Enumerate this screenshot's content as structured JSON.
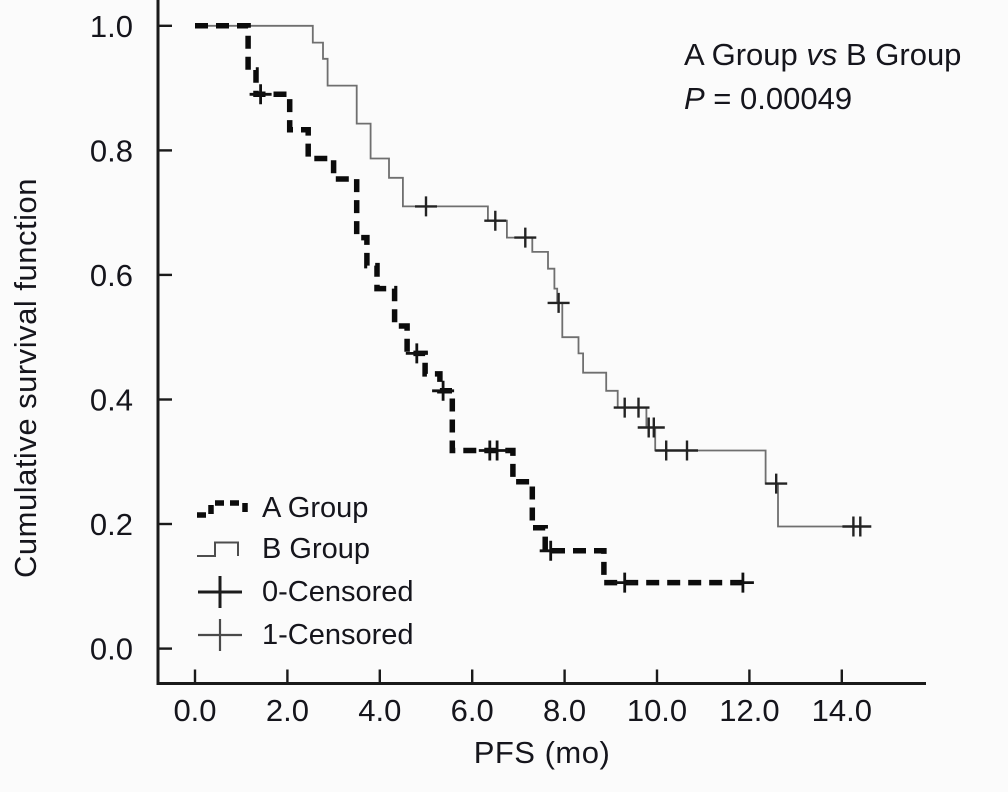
{
  "chart_data": {
    "type": "line",
    "subtype": "kaplan-meier-step-plot",
    "title": "",
    "xlabel": "PFS (mo)",
    "ylabel": "Cumulative survival function",
    "xlim": [
      0,
      15.8
    ],
    "ylim": [
      0,
      1.05
    ],
    "grid": false,
    "legend_position": "lower-left-inside",
    "x_ticks": {
      "values": [
        0,
        2,
        4,
        6,
        8,
        10,
        12,
        14
      ],
      "labels": [
        "0.0",
        "2.0",
        "4.0",
        "6.0",
        "8.0",
        "10.0",
        "12.0",
        "14.0"
      ]
    },
    "y_ticks": {
      "values": [
        0,
        0.2,
        0.4,
        0.6,
        0.8,
        1.0
      ],
      "labels": [
        "0.0",
        "0.2",
        "0.4",
        "0.6",
        "0.8",
        "1.0"
      ]
    },
    "annotation": {
      "a_label": "A Group ",
      "vs_label": "vs",
      "b_label": " B Group",
      "p_symbol": "P",
      "p_rest": " = 0.00049"
    },
    "legend": [
      {
        "label": "A Group",
        "symbol": "thick-dashed-step"
      },
      {
        "label": "B Group",
        "symbol": "thin-step"
      },
      {
        "label": "0-Censored",
        "symbol": "plus-bold"
      },
      {
        "label": "1-Censored",
        "symbol": "plus-light"
      }
    ],
    "series": [
      {
        "name": "B Group",
        "style": "thin-solid",
        "steps": [
          [
            0,
            1.0
          ],
          [
            2.55,
            0.973
          ],
          [
            2.77,
            0.947
          ],
          [
            2.87,
            0.904
          ],
          [
            3.5,
            0.843
          ],
          [
            3.8,
            0.787
          ],
          [
            4.2,
            0.756
          ],
          [
            4.5,
            0.71
          ],
          [
            6.34,
            0.687
          ],
          [
            6.75,
            0.66
          ],
          [
            7.3,
            0.637
          ],
          [
            7.64,
            0.61
          ],
          [
            7.78,
            0.578
          ],
          [
            7.84,
            0.555
          ],
          [
            7.95,
            0.5
          ],
          [
            8.3,
            0.474
          ],
          [
            8.4,
            0.443
          ],
          [
            8.9,
            0.414
          ],
          [
            9.15,
            0.387
          ],
          [
            9.77,
            0.355
          ],
          [
            9.96,
            0.318
          ],
          [
            12.35,
            0.265
          ],
          [
            12.62,
            0.196
          ]
        ],
        "end_time": 14.45,
        "censored": [
          [
            5.0,
            0.71
          ],
          [
            6.5,
            0.687
          ],
          [
            7.15,
            0.66
          ],
          [
            7.87,
            0.555
          ],
          [
            9.3,
            0.387
          ],
          [
            9.6,
            0.387
          ],
          [
            9.82,
            0.355
          ],
          [
            9.93,
            0.355
          ],
          [
            10.2,
            0.318
          ],
          [
            10.65,
            0.318
          ],
          [
            12.58,
            0.265
          ],
          [
            14.25,
            0.196
          ],
          [
            14.4,
            0.196
          ]
        ]
      },
      {
        "name": "A Group",
        "style": "thick-dashed",
        "steps": [
          [
            0,
            1.0
          ],
          [
            1.15,
            0.929
          ],
          [
            1.32,
            0.89
          ],
          [
            2.05,
            0.833
          ],
          [
            2.45,
            0.787
          ],
          [
            3.0,
            0.754
          ],
          [
            3.5,
            0.66
          ],
          [
            3.72,
            0.615
          ],
          [
            3.94,
            0.578
          ],
          [
            4.32,
            0.518
          ],
          [
            4.59,
            0.474
          ],
          [
            4.98,
            0.441
          ],
          [
            5.3,
            0.414
          ],
          [
            5.57,
            0.318
          ],
          [
            6.88,
            0.268
          ],
          [
            7.3,
            0.194
          ],
          [
            7.58,
            0.157
          ],
          [
            8.85,
            0.106
          ]
        ],
        "end_time": 11.9,
        "censored": [
          [
            1.42,
            0.89
          ],
          [
            4.8,
            0.474
          ],
          [
            5.37,
            0.414
          ],
          [
            6.38,
            0.318
          ],
          [
            6.54,
            0.318
          ],
          [
            7.7,
            0.157
          ],
          [
            9.3,
            0.106
          ],
          [
            11.86,
            0.106
          ]
        ]
      }
    ],
    "colors": {
      "background": "#fbfbfb",
      "text": "#15151c",
      "axis": "#1a1a1a",
      "a_curve": "#0b0b0b",
      "b_curve": "#6f6f6f",
      "censor_a": "#111111",
      "censor_b": "#232323",
      "legend_b_symbol": "#4d4d4d",
      "legend_plus_bold": "#1c1c1c",
      "legend_plus_light": "#4a4a4a"
    }
  }
}
